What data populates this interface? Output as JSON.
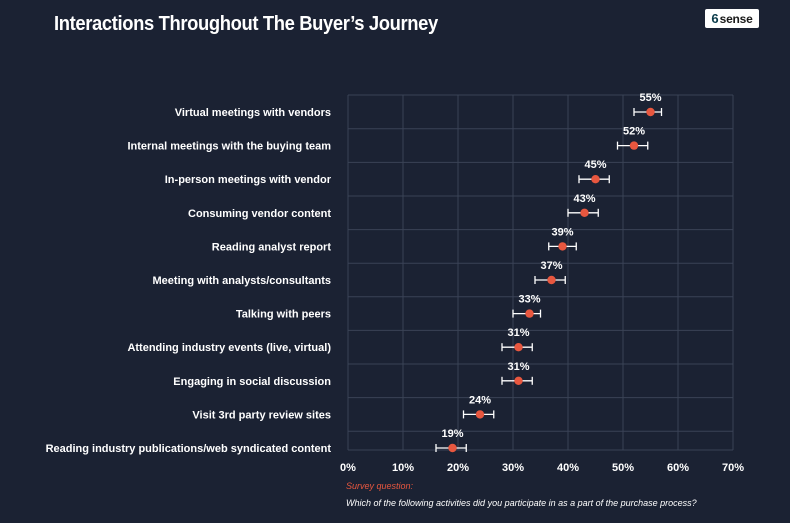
{
  "title": "Interactions Throughout The Buyer’s Journey",
  "logo": {
    "mark": "6",
    "text": "sense"
  },
  "colors": {
    "background": "#1b2233",
    "grid": "#3a4356",
    "marker": "#e8573f",
    "text": "#ffffff",
    "accent_text": "#e8573f"
  },
  "chart_data": {
    "type": "scatter",
    "categories": [
      "Virtual meetings with vendors",
      "Internal meetings with the buying team",
      "In-person meetings with vendor",
      "Consuming vendor content",
      "Reading analyst report",
      "Meeting with analysts/consultants",
      "Talking with peers",
      "Attending industry events (live, virtual)",
      "Engaging in social discussion",
      "Visit 3rd party review sites",
      "Reading industry publications/web syndicated content"
    ],
    "values": [
      55,
      52,
      45,
      43,
      39,
      37,
      33,
      31,
      31,
      24,
      19
    ],
    "value_labels": [
      "55%",
      "52%",
      "45%",
      "43%",
      "39%",
      "37%",
      "33%",
      "31%",
      "31%",
      "24%",
      "19%"
    ],
    "error_low": [
      52,
      49,
      42,
      40,
      36.5,
      34,
      30,
      28,
      28,
      21,
      16
    ],
    "error_high": [
      57,
      54.5,
      47.5,
      45.5,
      41.5,
      39.5,
      35,
      33.5,
      33.5,
      26.5,
      21.5
    ],
    "xlim": [
      0,
      70
    ],
    "xticks": [
      0,
      10,
      20,
      30,
      40,
      50,
      60,
      70
    ],
    "xtick_labels": [
      "0%",
      "10%",
      "20%",
      "30%",
      "40%",
      "50%",
      "60%",
      "70%"
    ],
    "grid": true
  },
  "footnote": {
    "label": "Survey question:",
    "question": "Which of the following activities did you participate in as a part of the purchase process?"
  }
}
